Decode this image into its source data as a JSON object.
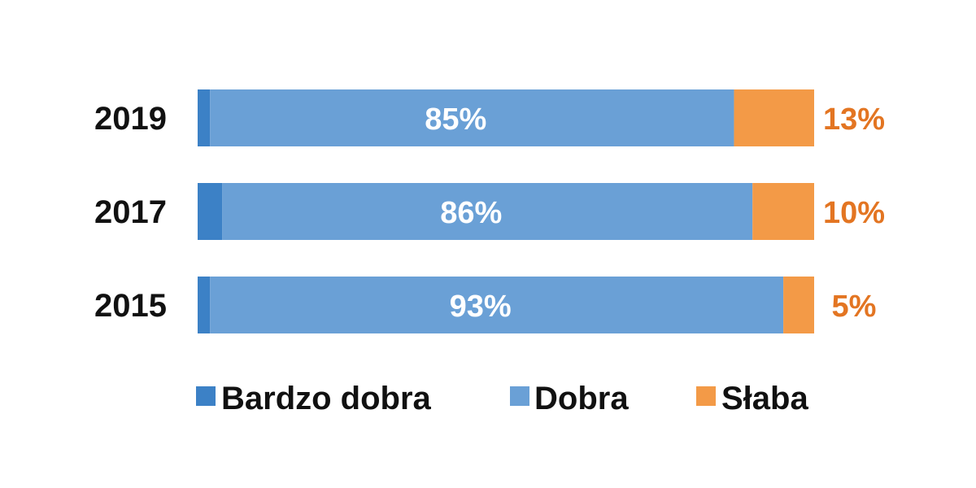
{
  "chart_data": {
    "type": "bar",
    "orientation": "horizontal",
    "stacked": true,
    "categories": [
      "2019",
      "2017",
      "2015"
    ],
    "series": [
      {
        "name": "Bardzo dobra",
        "values": [
          2,
          4,
          2
        ],
        "color": "#3c81c6",
        "labels": [
          "",
          "",
          ""
        ]
      },
      {
        "name": "Dobra",
        "values": [
          85,
          86,
          93
        ],
        "color": "#6aa0d6",
        "labels": [
          "85%",
          "86%",
          "93%"
        ]
      },
      {
        "name": "Słaba",
        "values": [
          13,
          10,
          5
        ],
        "color": "#f39a47",
        "labels": [
          "13%",
          "10%",
          "5%"
        ]
      }
    ],
    "xlim": [
      0,
      100
    ],
    "label_color_outside": "#e37522",
    "legend_position": "bottom",
    "grid": false
  }
}
